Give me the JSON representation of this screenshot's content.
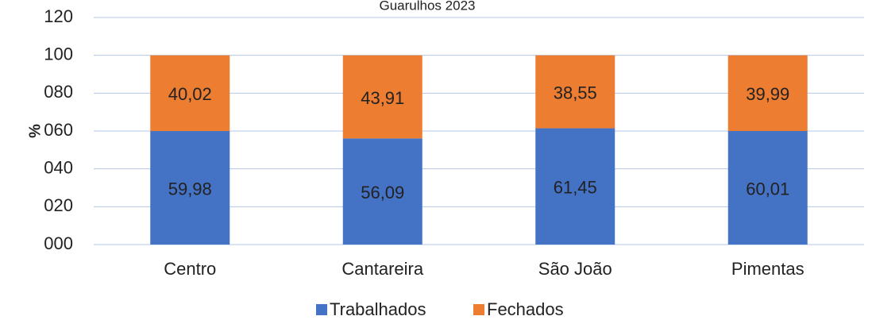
{
  "chart_data": {
    "type": "stacked_bar",
    "title": "Guarulhos 2023",
    "y_label": "%",
    "categories": [
      "Centro",
      "Cantareira",
      "São João",
      "Pimentas"
    ],
    "series": [
      {
        "name": "Trabalhados",
        "color": "#4472c4",
        "values": [
          59.98,
          56.09,
          61.45,
          60.01
        ],
        "value_labels": [
          "59,98",
          "56,09",
          "61,45",
          "60,01"
        ]
      },
      {
        "name": "Fechados",
        "color": "#ed7d31",
        "values": [
          40.02,
          43.91,
          38.55,
          39.99
        ],
        "value_labels": [
          "40,02",
          "43,91",
          "38,55",
          "39,99"
        ]
      }
    ],
    "ylim": [
      0,
      120
    ],
    "yticks": [
      {
        "value": 0,
        "label": "000"
      },
      {
        "value": 20,
        "label": "020"
      },
      {
        "value": 40,
        "label": "040"
      },
      {
        "value": 60,
        "label": "060"
      },
      {
        "value": 80,
        "label": "080"
      },
      {
        "value": 100,
        "label": "100"
      },
      {
        "value": 120,
        "label": "120"
      }
    ],
    "grid": true,
    "legend": "bottom"
  }
}
